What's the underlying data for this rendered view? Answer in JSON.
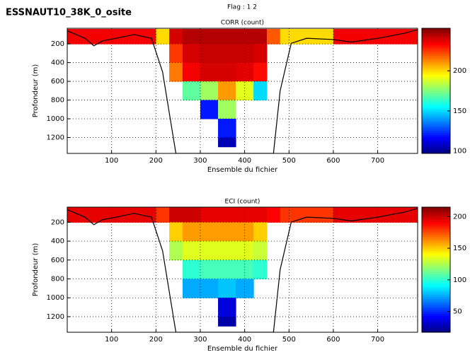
{
  "title": "ESSNAUT10_38K_0_osite",
  "subtitle": "Flag : 1  2",
  "chart_data": [
    {
      "type": "heatmap",
      "title": "CORR (count)",
      "xlabel": "Ensemble du fichier",
      "ylabel": "Profondeur (m)",
      "xlim": [
        0,
        790
      ],
      "ylim": [
        1370,
        33
      ],
      "xticks": [
        100,
        200,
        300,
        400,
        500,
        600,
        700
      ],
      "yticks": [
        200,
        400,
        600,
        800,
        1000,
        1200
      ],
      "grid": true,
      "colormap": "jet",
      "clim": [
        97,
        253
      ],
      "cticks": [
        100,
        150,
        200
      ],
      "x_edges": [
        0,
        100,
        200,
        230,
        260,
        300,
        340,
        380,
        420,
        450,
        480,
        600,
        700,
        790
      ],
      "y_edges": [
        40,
        200,
        400,
        600,
        800,
        1000,
        1200,
        1300
      ],
      "z": [
        [
          235,
          235,
          200,
          240,
          245,
          245,
          245,
          245,
          245,
          220,
          200,
          235,
          235
        ],
        [
          null,
          null,
          null,
          225,
          240,
          242,
          242,
          242,
          240,
          null,
          null,
          null,
          null
        ],
        [
          null,
          null,
          null,
          215,
          235,
          240,
          240,
          238,
          232,
          null,
          null,
          null,
          null
        ],
        [
          null,
          null,
          null,
          null,
          170,
          180,
          210,
          190,
          150,
          null,
          null,
          null,
          null
        ],
        [
          null,
          null,
          null,
          null,
          null,
          120,
          180,
          null,
          null,
          null,
          null,
          null,
          null
        ],
        [
          null,
          null,
          null,
          null,
          null,
          null,
          120,
          null,
          null,
          null,
          null,
          null,
          null
        ],
        [
          null,
          null,
          null,
          null,
          null,
          null,
          105,
          null,
          null,
          null,
          null,
          null,
          null
        ]
      ]
    },
    {
      "type": "heatmap",
      "title": "ECI (count)",
      "xlabel": "Ensemble du fichier",
      "ylabel": "Profondeur (m)",
      "xlim": [
        0,
        790
      ],
      "ylim": [
        1365,
        40
      ],
      "xticks": [
        100,
        200,
        300,
        400,
        500,
        600,
        700
      ],
      "yticks": [
        200,
        400,
        600,
        800,
        1000,
        1200
      ],
      "grid": true,
      "colormap": "jet",
      "clim": [
        17,
        215
      ],
      "cticks": [
        50,
        100,
        150,
        200
      ],
      "x_edges": [
        0,
        100,
        200,
        230,
        260,
        300,
        340,
        380,
        420,
        450,
        480,
        600,
        700,
        790
      ],
      "y_edges": [
        40,
        200,
        400,
        600,
        800,
        1000,
        1200,
        1300
      ],
      "z": [
        [
          195,
          195,
          180,
          200,
          200,
          195,
          195,
          195,
          195,
          190,
          180,
          195,
          195
        ],
        [
          null,
          null,
          null,
          150,
          160,
          160,
          160,
          160,
          150,
          null,
          null,
          null,
          null
        ],
        [
          null,
          null,
          null,
          125,
          135,
          135,
          135,
          135,
          130,
          null,
          null,
          null,
          null
        ],
        [
          null,
          null,
          null,
          null,
          100,
          105,
          105,
          105,
          100,
          null,
          null,
          null,
          null
        ],
        [
          null,
          null,
          null,
          null,
          75,
          75,
          80,
          75,
          null,
          null,
          null,
          null,
          null
        ],
        [
          null,
          null,
          null,
          null,
          null,
          null,
          35,
          null,
          null,
          null,
          null,
          null,
          null
        ],
        [
          null,
          null,
          null,
          null,
          null,
          null,
          25,
          null,
          null,
          null,
          null,
          null,
          null
        ]
      ]
    }
  ]
}
